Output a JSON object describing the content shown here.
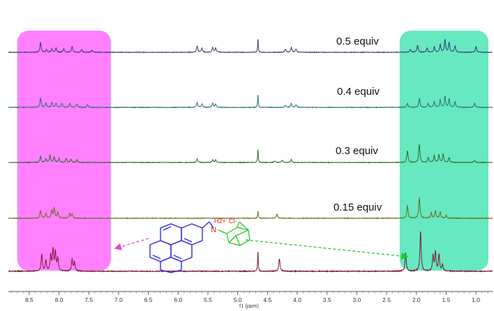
{
  "chart_data": {
    "type": "line",
    "title": "",
    "xlabel": "f1 (ppm)",
    "ylabel": "",
    "x_reversed": true,
    "xlim": [
      8.85,
      0.72
    ],
    "xticks": [
      8.5,
      8.0,
      7.5,
      7.0,
      6.5,
      6.0,
      5.5,
      5.0,
      4.5,
      4.0,
      3.5,
      3.0,
      2.5,
      2.0,
      1.5,
      1.0
    ],
    "xtick_labels": [
      "8.5",
      "8.0",
      "7.5",
      "7.0",
      "6.5",
      "6.0",
      "5.5",
      "5.0",
      "4.5",
      "4.0",
      "3.5",
      "3.0",
      "2.5",
      "2.0",
      "1.5",
      "1.0"
    ],
    "grid": false,
    "highlight_regions": [
      {
        "name": "aromatic",
        "x": [
          8.7,
          7.13
        ],
        "color": "#ff80ff"
      },
      {
        "name": "aliphatic",
        "x": [
          2.28,
          0.79
        ],
        "color": "#66e8c0"
      }
    ],
    "series": [
      {
        "name": "0.5 equiv",
        "color": "#3a3a7a",
        "baseline": 0.5,
        "peaks": [
          [
            8.31,
            0.7
          ],
          [
            8.21,
            0.2
          ],
          [
            8.12,
            0.25
          ],
          [
            8.05,
            0.3
          ],
          [
            7.92,
            0.25
          ],
          [
            7.78,
            0.45
          ],
          [
            7.62,
            0.2
          ],
          [
            7.45,
            0.15
          ],
          [
            5.68,
            0.45
          ],
          [
            5.6,
            0.3
          ],
          [
            5.42,
            0.35
          ],
          [
            5.37,
            0.3
          ],
          [
            4.66,
            1.0
          ],
          [
            4.2,
            0.22
          ],
          [
            4.1,
            0.35
          ],
          [
            4.02,
            0.22
          ],
          [
            2.1,
            0.2
          ],
          [
            1.98,
            0.5
          ],
          [
            1.82,
            0.3
          ],
          [
            1.7,
            0.4
          ],
          [
            1.6,
            0.55
          ],
          [
            1.52,
            0.9
          ],
          [
            1.45,
            0.7
          ],
          [
            1.35,
            0.45
          ],
          [
            1.0,
            0.4
          ]
        ]
      },
      {
        "name": "0.4 equiv",
        "color": "#2d6e74",
        "baseline": 0.4,
        "peaks": [
          [
            8.31,
            0.65
          ],
          [
            8.22,
            0.3
          ],
          [
            8.12,
            0.35
          ],
          [
            8.05,
            0.3
          ],
          [
            7.95,
            0.3
          ],
          [
            7.82,
            0.3
          ],
          [
            7.7,
            0.25
          ],
          [
            7.52,
            0.2
          ],
          [
            5.68,
            0.35
          ],
          [
            5.6,
            0.25
          ],
          [
            5.42,
            0.3
          ],
          [
            5.37,
            0.25
          ],
          [
            4.66,
            0.95
          ],
          [
            4.2,
            0.15
          ],
          [
            4.1,
            0.3
          ],
          [
            4.02,
            0.2
          ],
          [
            2.15,
            0.3
          ],
          [
            1.95,
            0.65
          ],
          [
            1.8,
            0.3
          ],
          [
            1.7,
            0.4
          ],
          [
            1.6,
            0.55
          ],
          [
            1.52,
            0.8
          ],
          [
            1.45,
            0.6
          ],
          [
            1.35,
            0.4
          ],
          [
            1.02,
            0.3
          ]
        ]
      },
      {
        "name": "0.3 equiv",
        "color": "#2f6a2a",
        "baseline": 0.3,
        "peaks": [
          [
            8.31,
            0.45
          ],
          [
            8.22,
            0.25
          ],
          [
            8.15,
            0.5
          ],
          [
            8.08,
            0.4
          ],
          [
            8.0,
            0.3
          ],
          [
            7.88,
            0.3
          ],
          [
            7.8,
            0.25
          ],
          [
            7.7,
            0.2
          ],
          [
            5.68,
            0.25
          ],
          [
            5.42,
            0.2
          ],
          [
            5.37,
            0.18
          ],
          [
            4.66,
            1.0
          ],
          [
            4.38,
            0.1
          ],
          [
            4.25,
            0.15
          ],
          [
            4.1,
            0.22
          ],
          [
            2.15,
            0.85
          ],
          [
            1.95,
            1.3
          ],
          [
            1.8,
            0.35
          ],
          [
            1.7,
            0.5
          ],
          [
            1.62,
            0.55
          ],
          [
            1.55,
            0.6
          ],
          [
            1.45,
            0.35
          ],
          [
            1.02,
            0.15
          ]
        ]
      },
      {
        "name": "0.15 equiv",
        "color": "#6b6a1c",
        "baseline": 0.15,
        "peaks": [
          [
            8.31,
            0.55
          ],
          [
            8.22,
            0.35
          ],
          [
            8.12,
            0.55
          ],
          [
            8.08,
            0.7
          ],
          [
            8.02,
            0.45
          ],
          [
            7.82,
            0.35
          ],
          [
            7.78,
            0.3
          ],
          [
            4.66,
            0.55
          ],
          [
            4.34,
            0.3
          ],
          [
            2.15,
            0.9
          ],
          [
            1.95,
            1.5
          ],
          [
            1.75,
            0.4
          ],
          [
            1.68,
            0.55
          ],
          [
            1.6,
            0.45
          ],
          [
            1.5,
            0.2
          ]
        ]
      },
      {
        "name": "",
        "color": "#7a1a34",
        "baseline": 0.0,
        "peaks": [
          [
            8.29,
            0.8
          ],
          [
            8.22,
            0.5
          ],
          [
            8.14,
            0.75
          ],
          [
            8.1,
            1.0
          ],
          [
            8.06,
            0.9
          ],
          [
            8.02,
            0.6
          ],
          [
            7.78,
            0.55
          ],
          [
            7.74,
            0.45
          ],
          [
            4.66,
            1.0
          ],
          [
            4.3,
            0.6
          ],
          [
            2.18,
            0.9
          ],
          [
            1.93,
            1.9
          ],
          [
            1.72,
            0.75
          ],
          [
            1.68,
            0.9
          ],
          [
            1.62,
            0.8
          ],
          [
            1.56,
            0.3
          ]
        ]
      }
    ]
  },
  "molecule": {
    "ammonium_label": "H2+",
    "nitrogen": "N",
    "counterion": "Cl-"
  },
  "colors": {
    "pyrene": "#2b2be8",
    "adamantane": "#22cc22",
    "charge": "#ee2222",
    "pink_arrow": "#ee44cc",
    "green_arrow": "#22cc22"
  }
}
